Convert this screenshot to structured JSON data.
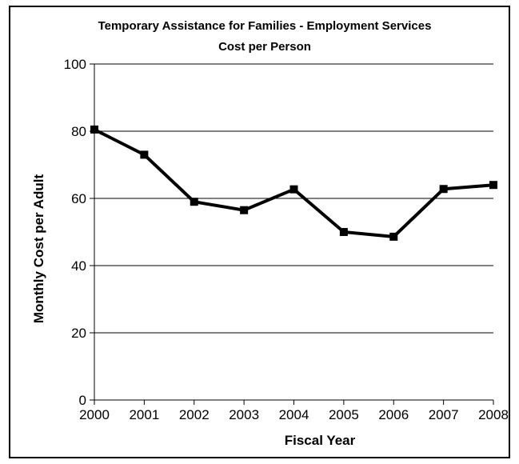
{
  "chart_data": {
    "type": "line",
    "title": "Temporary Assistance for Families - Employment Services",
    "subtitle": "Cost per Person",
    "xlabel": "Fiscal Year",
    "ylabel": "Monthly Cost per Adult",
    "categories": [
      "2000",
      "2001",
      "2002",
      "2003",
      "2004",
      "2005",
      "2006",
      "2007",
      "2008"
    ],
    "series": [
      {
        "values": [
          80.5,
          73,
          59,
          56.5,
          62.7,
          50,
          48.6,
          62.8,
          64
        ]
      }
    ],
    "ylim": [
      0,
      100
    ],
    "yticks": [
      0,
      20,
      40,
      60,
      80,
      100
    ],
    "grid": true,
    "legend": "none",
    "line_color": "#000000",
    "marker": "square"
  }
}
